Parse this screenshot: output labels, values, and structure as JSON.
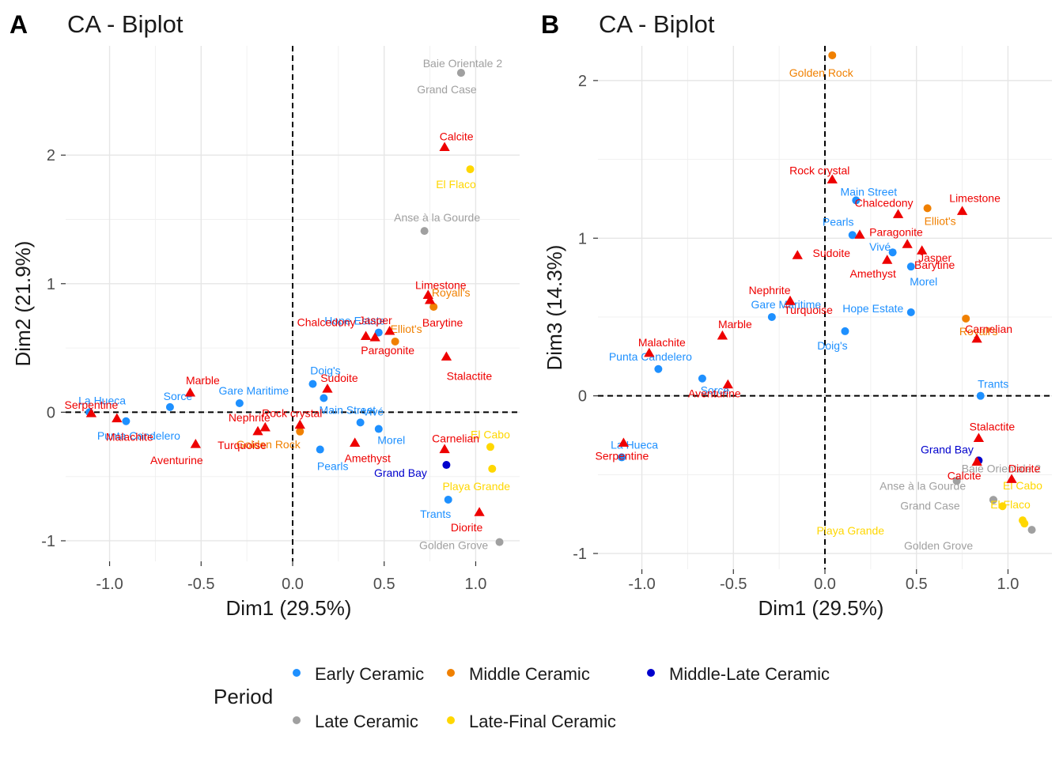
{
  "colors": {
    "artefact": "#ee0000",
    "early": "#1e90ff",
    "middle": "#f08000",
    "middle_late": "#0000cd",
    "late": "#a0a0a0",
    "late_final": "#ffd700"
  },
  "legend": {
    "title": "Period",
    "items": [
      {
        "label": "Early Ceramic",
        "color": "#1e90ff"
      },
      {
        "label": "Middle Ceramic",
        "color": "#f08000"
      },
      {
        "label": "Middle-Late Ceramic",
        "color": "#0000cd"
      },
      {
        "label": "Late Ceramic",
        "color": "#a0a0a0"
      },
      {
        "label": "Late-Final Ceramic",
        "color": "#ffd700"
      }
    ]
  },
  "chart_data": [
    {
      "panel": "A",
      "type": "scatter",
      "title": "CA - Biplot",
      "xlabel": "Dim1 (29.5%)",
      "ylabel": "Dim2 (21.9%)",
      "xlim": [
        -1.24,
        1.24
      ],
      "ylim": [
        -1.16,
        2.85
      ],
      "xticks": [
        -1.0,
        -0.5,
        0.0,
        0.5,
        1.0
      ],
      "xtick_labels": [
        "-1.0",
        "-0.5",
        "0.0",
        "0.5",
        "1.0"
      ],
      "yticks": [
        -1,
        0,
        1,
        2
      ],
      "ytick_labels": [
        "-1",
        "0",
        "1",
        "2"
      ],
      "grid": true,
      "sites": [
        {
          "name": "Baie Orientale 2",
          "period": "late",
          "x": 0.92,
          "y": 2.64
        },
        {
          "name": "Grand Case",
          "period": "late",
          "x": 0.92,
          "y": 2.64
        },
        {
          "name": "El Flaco",
          "period": "late_final",
          "x": 0.97,
          "y": 1.89
        },
        {
          "name": "Anse à la Gourde",
          "period": "late",
          "x": 0.72,
          "y": 1.41
        },
        {
          "name": "Royall's",
          "period": "middle",
          "x": 0.77,
          "y": 0.82
        },
        {
          "name": "Hope Estate",
          "period": "early",
          "x": 0.47,
          "y": 0.62
        },
        {
          "name": "Elliot's",
          "period": "middle",
          "x": 0.56,
          "y": 0.55
        },
        {
          "name": "Doig's",
          "period": "early",
          "x": 0.11,
          "y": 0.22
        },
        {
          "name": "Main Street",
          "period": "early",
          "x": 0.17,
          "y": 0.11
        },
        {
          "name": "Gare Maritime",
          "period": "early",
          "x": -0.29,
          "y": 0.07
        },
        {
          "name": "Sorcé",
          "period": "early",
          "x": -0.67,
          "y": 0.04
        },
        {
          "name": "La Hueca",
          "period": "early",
          "x": -1.11,
          "y": 0.0
        },
        {
          "name": "Punta Candelero",
          "period": "early",
          "x": -0.91,
          "y": -0.07
        },
        {
          "name": "Golden Rock",
          "period": "middle",
          "x": 0.04,
          "y": -0.15
        },
        {
          "name": "Vivé",
          "period": "early",
          "x": 0.37,
          "y": -0.08
        },
        {
          "name": "Morel",
          "period": "early",
          "x": 0.47,
          "y": -0.13
        },
        {
          "name": "Pearls",
          "period": "early",
          "x": 0.15,
          "y": -0.29
        },
        {
          "name": "El Cabo",
          "period": "late_final",
          "x": 1.08,
          "y": -0.27
        },
        {
          "name": "Grand Bay",
          "period": "middle_late",
          "x": 0.84,
          "y": -0.41
        },
        {
          "name": "Playa Grande",
          "period": "late_final",
          "x": 1.09,
          "y": -0.44
        },
        {
          "name": "Trants",
          "period": "early",
          "x": 0.85,
          "y": -0.68
        },
        {
          "name": "Golden Grove",
          "period": "late",
          "x": 1.13,
          "y": -1.01
        }
      ],
      "artefacts": [
        {
          "name": "Calcite",
          "x": 0.83,
          "y": 2.06
        },
        {
          "name": "Limestone",
          "x": 0.74,
          "y": 0.91
        },
        {
          "name": "Barytine",
          "x": 0.75,
          "y": 0.87
        },
        {
          "name": "Jasper",
          "x": 0.53,
          "y": 0.63
        },
        {
          "name": "Paragonite",
          "x": 0.45,
          "y": 0.58
        },
        {
          "name": "Chalcedony",
          "x": 0.4,
          "y": 0.59
        },
        {
          "name": "Stalactite",
          "x": 0.84,
          "y": 0.43
        },
        {
          "name": "Sudoite",
          "x": 0.19,
          "y": 0.18
        },
        {
          "name": "Marble",
          "x": -0.56,
          "y": 0.15
        },
        {
          "name": "Serpentine",
          "x": -1.1,
          "y": -0.01
        },
        {
          "name": "Malachite",
          "x": -0.96,
          "y": -0.05
        },
        {
          "name": "Rock crystal",
          "x": 0.04,
          "y": -0.1
        },
        {
          "name": "Nephrite",
          "x": -0.15,
          "y": -0.12
        },
        {
          "name": "Turquoise",
          "x": -0.19,
          "y": -0.15
        },
        {
          "name": "Aventurine",
          "x": -0.53,
          "y": -0.25
        },
        {
          "name": "Amethyst",
          "x": 0.34,
          "y": -0.24
        },
        {
          "name": "Carnelian",
          "x": 0.83,
          "y": -0.29
        },
        {
          "name": "Diorite",
          "x": 1.02,
          "y": -0.78
        }
      ]
    },
    {
      "panel": "B",
      "type": "scatter",
      "title": "CA - Biplot",
      "xlabel": "Dim1 (29.5%)",
      "ylabel": "Dim3 (14.3%)",
      "xlim": [
        -1.24,
        1.24
      ],
      "ylim": [
        -1.1,
        2.22
      ],
      "xticks": [
        -1.0,
        -0.5,
        0.0,
        0.5,
        1.0
      ],
      "xtick_labels": [
        "-1.0",
        "-0.5",
        "0.0",
        "0.5",
        "1.0"
      ],
      "yticks": [
        -1,
        0,
        1,
        2
      ],
      "ytick_labels": [
        "-1",
        "0",
        "1",
        "2"
      ],
      "grid": true,
      "sites": [
        {
          "name": "Golden Rock",
          "period": "middle",
          "x": 0.04,
          "y": 2.16
        },
        {
          "name": "Main Street",
          "period": "early",
          "x": 0.17,
          "y": 1.24
        },
        {
          "name": "Elliot's",
          "period": "middle",
          "x": 0.56,
          "y": 1.19
        },
        {
          "name": "Pearls",
          "period": "early",
          "x": 0.15,
          "y": 1.02
        },
        {
          "name": "Vivé",
          "period": "early",
          "x": 0.37,
          "y": 0.91
        },
        {
          "name": "Morel",
          "period": "early",
          "x": 0.47,
          "y": 0.82
        },
        {
          "name": "Gare Maritime",
          "period": "early",
          "x": -0.29,
          "y": 0.5
        },
        {
          "name": "Hope Estate",
          "period": "early",
          "x": 0.47,
          "y": 0.53
        },
        {
          "name": "Royall's",
          "period": "middle",
          "x": 0.77,
          "y": 0.49
        },
        {
          "name": "Doig's",
          "period": "early",
          "x": 0.11,
          "y": 0.41
        },
        {
          "name": "Punta Candelero",
          "period": "early",
          "x": -0.91,
          "y": 0.17
        },
        {
          "name": "Sorcé",
          "period": "early",
          "x": -0.67,
          "y": 0.11
        },
        {
          "name": "Trants",
          "period": "early",
          "x": 0.85,
          "y": 0.0
        },
        {
          "name": "La Hueca",
          "period": "early",
          "x": -1.11,
          "y": -0.39
        },
        {
          "name": "Grand Bay",
          "period": "middle_late",
          "x": 0.84,
          "y": -0.41
        },
        {
          "name": "Baie Orientale 2",
          "period": "late",
          "x": 0.92,
          "y": -0.66
        },
        {
          "name": "Anse à la Gourde",
          "period": "late",
          "x": 0.72,
          "y": -0.54
        },
        {
          "name": "Grand Case",
          "period": "late",
          "x": 0.92,
          "y": -0.66
        },
        {
          "name": "El Cabo",
          "period": "late_final",
          "x": 1.08,
          "y": -0.79
        },
        {
          "name": "El Flaco",
          "period": "late_final",
          "x": 0.97,
          "y": -0.7
        },
        {
          "name": "Playa Grande",
          "period": "late_final",
          "x": 1.09,
          "y": -0.81
        },
        {
          "name": "Golden Grove",
          "period": "late",
          "x": 1.13,
          "y": -0.85
        }
      ],
      "artefacts": [
        {
          "name": "Rock crystal",
          "x": 0.04,
          "y": 1.37
        },
        {
          "name": "Chalcedony",
          "x": 0.4,
          "y": 1.15
        },
        {
          "name": "Limestone",
          "x": 0.75,
          "y": 1.17
        },
        {
          "name": "Barytine",
          "x": 0.53,
          "y": 0.92
        },
        {
          "name": "Paragonite",
          "x": 0.19,
          "y": 1.02
        },
        {
          "name": "Sudoite",
          "x": -0.15,
          "y": 0.89
        },
        {
          "name": "Jasper",
          "x": 0.45,
          "y": 0.96
        },
        {
          "name": "Amethyst",
          "x": 0.34,
          "y": 0.86
        },
        {
          "name": "Nephrite",
          "x": -0.19,
          "y": 0.6
        },
        {
          "name": "Turquoise",
          "x": -0.19,
          "y": 0.6
        },
        {
          "name": "Marble",
          "x": -0.56,
          "y": 0.38
        },
        {
          "name": "Carnelian",
          "x": 0.83,
          "y": 0.36
        },
        {
          "name": "Malachite",
          "x": -0.96,
          "y": 0.27
        },
        {
          "name": "Aventurine",
          "x": -0.53,
          "y": 0.07
        },
        {
          "name": "Stalactite",
          "x": 0.84,
          "y": -0.27
        },
        {
          "name": "Serpentine",
          "x": -1.1,
          "y": -0.3
        },
        {
          "name": "Calcite",
          "x": 0.83,
          "y": -0.42
        },
        {
          "name": "Diorite",
          "x": 1.02,
          "y": -0.53
        }
      ]
    }
  ],
  "panels": [
    {
      "tag": "A",
      "title": "CA - Biplot"
    },
    {
      "tag": "B",
      "title": "CA - Biplot"
    }
  ]
}
